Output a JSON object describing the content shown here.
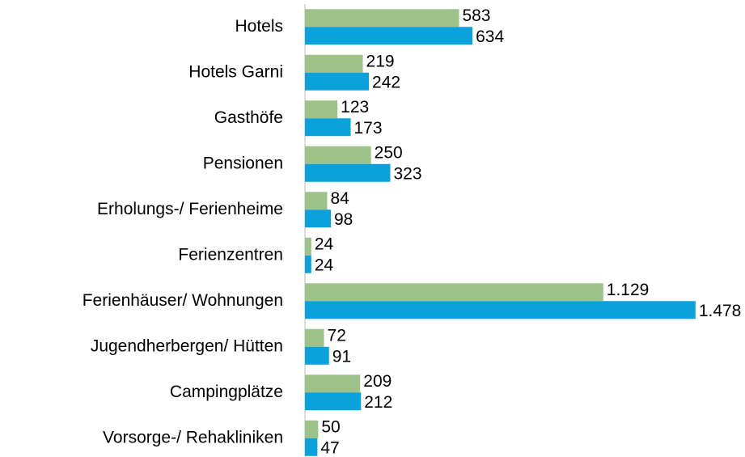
{
  "chart_data": {
    "type": "bar",
    "orientation": "horizontal",
    "categories": [
      "Hotels",
      "Hotels Garni",
      "Gasthöfe",
      "Pensionen",
      "Erholungs-/ Ferienheime",
      "Ferienzentren",
      "Ferienhäuser/ Wohnungen",
      "Jugendherbergen/ Hütten",
      "Campingplätze",
      "Vorsorge-/ Rehakliniken"
    ],
    "series": [
      {
        "color": "#9dc38b",
        "values": [
          583,
          219,
          123,
          250,
          84,
          24,
          1129,
          72,
          209,
          50
        ],
        "value_labels": [
          "583",
          "219",
          "123",
          "250",
          "84",
          "24",
          "1.129",
          "72",
          "209",
          "50"
        ]
      },
      {
        "color": "#0ba1dc",
        "values": [
          634,
          242,
          173,
          323,
          98,
          24,
          1478,
          91,
          212,
          47
        ],
        "value_labels": [
          "634",
          "242",
          "173",
          "323",
          "98",
          "24",
          "1.478",
          "91",
          "212",
          "47"
        ]
      }
    ],
    "xlim": [
      0,
      1500
    ]
  }
}
